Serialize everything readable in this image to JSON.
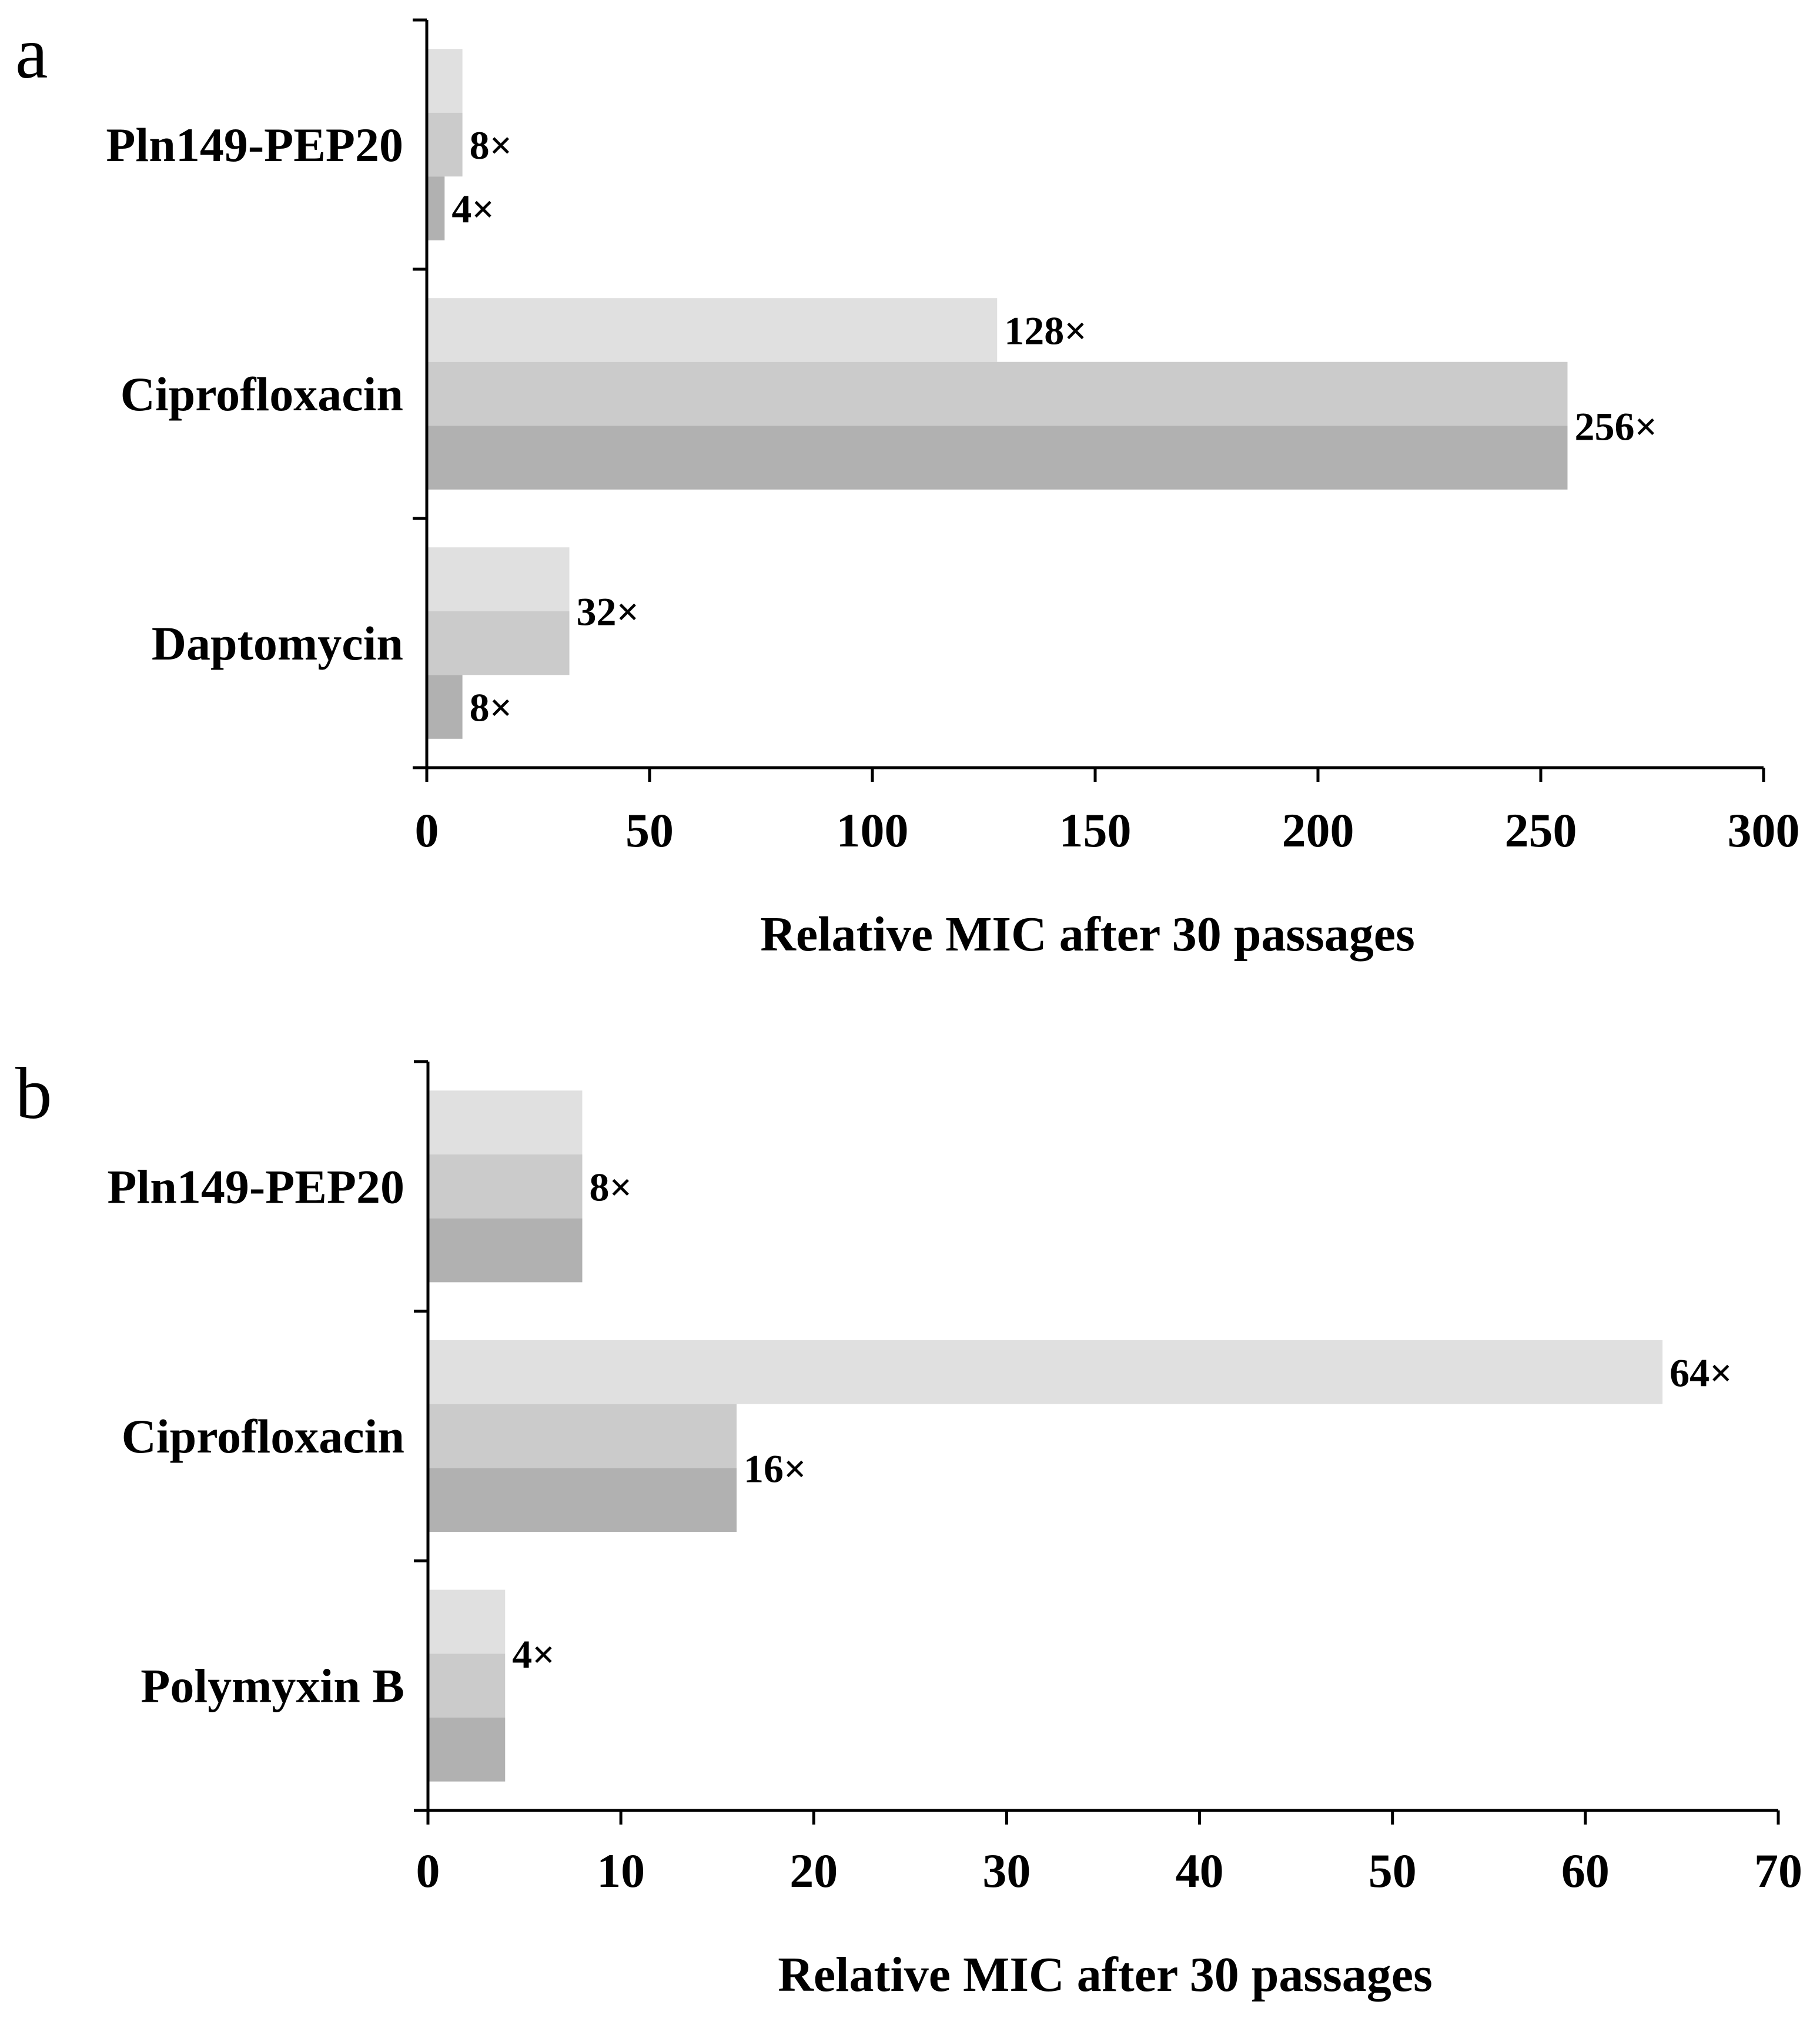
{
  "chart_data": [
    {
      "type": "bar",
      "orientation": "horizontal",
      "panel_label": "a",
      "categories": [
        "Pln149-PEP20",
        "Ciprofloxacin",
        "Daptomycin"
      ],
      "series": [
        {
          "name": "series 1",
          "color": "#e0e0e0",
          "values": [
            8,
            128,
            32
          ]
        },
        {
          "name": "series 2",
          "color": "#cbcbcb",
          "values": [
            8,
            256,
            32
          ]
        },
        {
          "name": "series 3",
          "color": "#b1b1b1",
          "values": [
            4,
            256,
            8
          ]
        }
      ],
      "data_labels": [
        {
          "text": "8×",
          "category": 0,
          "series": 1
        },
        {
          "text": "4×",
          "category": 0,
          "series": 2
        },
        {
          "text": "128×",
          "category": 1,
          "series": 0
        },
        {
          "text": "256×",
          "category": 1,
          "series": 1.5
        },
        {
          "text": "32×",
          "category": 2,
          "series": 0.5
        },
        {
          "text": "8×",
          "category": 2,
          "series": 2
        }
      ],
      "xlim": [
        0,
        300
      ],
      "ticks": [
        0,
        50,
        100,
        150,
        200,
        250,
        300
      ],
      "xlabel": "Relative MIC after 30 passages",
      "ylabel": "",
      "legend": "none"
    },
    {
      "type": "bar",
      "orientation": "horizontal",
      "panel_label": "b",
      "categories": [
        "Pln149-PEP20",
        "Ciprofloxacin",
        "Polymyxin B"
      ],
      "series": [
        {
          "name": "series 1",
          "color": "#e0e0e0",
          "values": [
            8,
            64,
            4
          ]
        },
        {
          "name": "series 2",
          "color": "#cbcbcb",
          "values": [
            8,
            16,
            4
          ]
        },
        {
          "name": "series 3",
          "color": "#b1b1b1",
          "values": [
            8,
            16,
            4
          ]
        }
      ],
      "data_labels": [
        {
          "text": "8×",
          "category": 0,
          "series": 1
        },
        {
          "text": "64×",
          "category": 1,
          "series": 0
        },
        {
          "text": "16×",
          "category": 1,
          "series": 1.5
        },
        {
          "text": "4×",
          "category": 2,
          "series": 0.5
        }
      ],
      "xlim": [
        0,
        70
      ],
      "ticks": [
        0,
        10,
        20,
        30,
        40,
        50,
        60,
        70
      ],
      "xlabel": "Relative MIC after 30 passages",
      "ylabel": "",
      "legend": "none"
    }
  ]
}
